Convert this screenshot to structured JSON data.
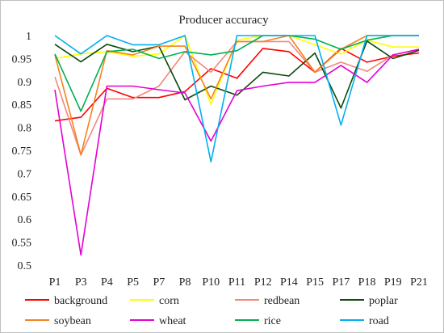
{
  "chart_data": {
    "type": "line",
    "title": "Producer accuracy",
    "xlabel": "",
    "ylabel": "",
    "categories": [
      "P1",
      "P3",
      "P4",
      "P5",
      "P7",
      "P8",
      "P10",
      "P11",
      "P12",
      "P14",
      "P15",
      "P17",
      "P18",
      "P19",
      "P21"
    ],
    "ylim": [
      0.5,
      1.0
    ],
    "yticks": [
      "0.5",
      "0.55",
      "0.6",
      "0.65",
      "0.7",
      "0.75",
      "0.8",
      "0.85",
      "0.9",
      "0.95",
      "1"
    ],
    "grid": false,
    "legend_position": "bottom",
    "series": [
      {
        "name": "background",
        "color": "#ff0000",
        "values": [
          0.814,
          0.822,
          0.885,
          0.865,
          0.865,
          0.878,
          0.928,
          0.907,
          0.972,
          0.965,
          0.92,
          0.972,
          0.942,
          0.955,
          0.962
        ]
      },
      {
        "name": "corn",
        "color": "#ffff00",
        "values": [
          0.95,
          0.96,
          0.965,
          0.955,
          0.96,
          1.0,
          0.85,
          0.99,
          1.0,
          1.0,
          0.98,
          0.96,
          0.99,
          0.975,
          0.975
        ]
      },
      {
        "name": "redbean",
        "color": "#f4877a",
        "values": [
          0.91,
          0.74,
          0.862,
          0.862,
          0.89,
          0.965,
          0.92,
          0.987,
          0.987,
          0.987,
          0.92,
          0.942,
          0.922,
          0.958,
          0.97
        ]
      },
      {
        "name": "poplar",
        "color": "#0d4a0d",
        "values": [
          0.981,
          0.943,
          0.981,
          0.965,
          0.977,
          0.86,
          0.89,
          0.87,
          0.92,
          0.912,
          0.962,
          0.842,
          0.988,
          0.95,
          0.968
        ]
      },
      {
        "name": "soybean",
        "color": "#f58220",
        "values": [
          0.958,
          0.74,
          0.967,
          0.958,
          0.977,
          0.977,
          0.862,
          0.987,
          0.987,
          1.0,
          0.92,
          0.97,
          1.0,
          1.0,
          1.0
        ]
      },
      {
        "name": "wheat",
        "color": "#e600d4",
        "values": [
          0.882,
          0.522,
          0.89,
          0.89,
          0.882,
          0.875,
          0.77,
          0.88,
          0.89,
          0.898,
          0.898,
          0.935,
          0.898,
          0.958,
          0.97
        ]
      },
      {
        "name": "rice",
        "color": "#00b050",
        "values": [
          0.96,
          0.835,
          0.965,
          0.97,
          0.95,
          0.965,
          0.958,
          0.967,
          1.0,
          1.0,
          0.992,
          0.97,
          0.99,
          1.0,
          1.0
        ]
      },
      {
        "name": "road",
        "color": "#00b0f0",
        "values": [
          1.0,
          0.96,
          1.0,
          0.98,
          0.98,
          1.0,
          0.725,
          1.0,
          1.0,
          1.0,
          1.0,
          0.805,
          1.0,
          1.0,
          1.0
        ]
      }
    ]
  }
}
